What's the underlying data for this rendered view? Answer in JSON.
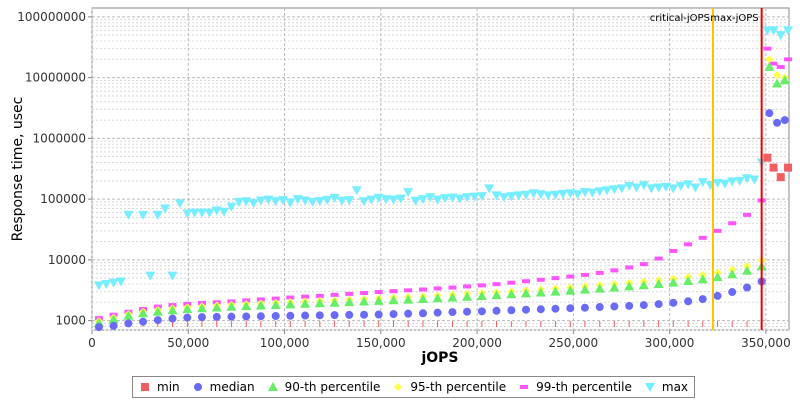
{
  "chart_data": {
    "type": "scatter",
    "xlabel": "jOPS",
    "ylabel": "Response time, usec",
    "xlim": [
      0,
      362000
    ],
    "ylim": [
      700,
      140000000
    ],
    "yscale": "log",
    "grid": true,
    "legend_position": "bottom",
    "x_ticks": [
      {
        "value": 0,
        "label": "0"
      },
      {
        "value": 50000,
        "label": "50,000"
      },
      {
        "value": 100000,
        "label": "100,000"
      },
      {
        "value": 150000,
        "label": "150,000"
      },
      {
        "value": 200000,
        "label": "200,000"
      },
      {
        "value": 250000,
        "label": "250,000"
      },
      {
        "value": 300000,
        "label": "300,000"
      },
      {
        "value": 350000,
        "label": "350,000"
      }
    ],
    "y_ticks": [
      {
        "value": 1000,
        "label": "1000"
      },
      {
        "value": 10000,
        "label": "10000"
      },
      {
        "value": 100000,
        "label": "100000"
      },
      {
        "value": 1000000,
        "label": "1000000"
      },
      {
        "value": 10000000,
        "label": "10000000"
      },
      {
        "value": 100000000,
        "label": "100000000"
      }
    ],
    "markers": [
      {
        "name": "critical-jOPS",
        "x": 322500,
        "color": "#ffc000"
      },
      {
        "name": "max-jOPS",
        "x": 347800,
        "color": "#ee0000"
      }
    ],
    "series": [
      {
        "name": "min",
        "color": "#f06060",
        "shape": "square",
        "x": [
          350800,
          354000,
          357700,
          361500
        ],
        "y": [
          480000,
          330000,
          230000,
          330000
        ]
      },
      {
        "name": "median",
        "color": "#6a6af5",
        "shape": "circle",
        "x": [
          3600,
          11200,
          18900,
          26500,
          34200,
          41800,
          49500,
          57100,
          64800,
          72400,
          80100,
          87700,
          95400,
          103000,
          110700,
          118300,
          126000,
          133600,
          141300,
          148900,
          156600,
          164200,
          171900,
          179500,
          187200,
          194800,
          202500,
          210100,
          217800,
          225400,
          233100,
          240700,
          248400,
          256000,
          263700,
          271300,
          279000,
          286600,
          294300,
          301900,
          309600,
          317200,
          324900,
          332500,
          340200,
          347800,
          351800,
          355800,
          359800
        ],
        "y": [
          780,
          820,
          900,
          960,
          1020,
          1080,
          1120,
          1140,
          1150,
          1160,
          1170,
          1180,
          1190,
          1200,
          1210,
          1220,
          1230,
          1240,
          1250,
          1260,
          1280,
          1300,
          1320,
          1350,
          1380,
          1400,
          1420,
          1450,
          1480,
          1510,
          1540,
          1570,
          1600,
          1630,
          1670,
          1710,
          1750,
          1800,
          1870,
          1960,
          2080,
          2260,
          2550,
          2950,
          3500,
          4400,
          2600000,
          1800000,
          2000000
        ]
      },
      {
        "name": "90-th percentile",
        "color": "#66ee66",
        "shape": "triangle",
        "x": [
          3600,
          11200,
          18900,
          26500,
          34200,
          41800,
          49500,
          57100,
          64800,
          72400,
          80100,
          87700,
          95400,
          103000,
          110700,
          118300,
          126000,
          133600,
          141300,
          148900,
          156600,
          164200,
          171900,
          179500,
          187200,
          194800,
          202500,
          210100,
          217800,
          225400,
          233100,
          240700,
          248400,
          256000,
          263700,
          271300,
          279000,
          286600,
          294300,
          301900,
          309600,
          317200,
          324900,
          332500,
          340200,
          347800,
          351800,
          355800,
          359800
        ],
        "y": [
          920,
          1050,
          1200,
          1320,
          1400,
          1480,
          1550,
          1600,
          1640,
          1690,
          1730,
          1770,
          1810,
          1850,
          1890,
          1930,
          1970,
          2010,
          2060,
          2110,
          2160,
          2210,
          2270,
          2330,
          2400,
          2470,
          2540,
          2620,
          2710,
          2800,
          2900,
          3000,
          3110,
          3230,
          3360,
          3500,
          3650,
          3820,
          4000,
          4220,
          4480,
          4800,
          5200,
          5800,
          6600,
          7800,
          15000000,
          8000000,
          9000000
        ]
      },
      {
        "name": "95-th percentile",
        "color": "#ffff44",
        "shape": "diamond",
        "x": [
          3600,
          11200,
          18900,
          26500,
          34200,
          41800,
          49500,
          57100,
          64800,
          72400,
          80100,
          87700,
          95400,
          103000,
          110700,
          118300,
          126000,
          133600,
          141300,
          148900,
          156600,
          164200,
          171900,
          179500,
          187200,
          194800,
          202500,
          210100,
          217800,
          225400,
          233100,
          240700,
          248400,
          256000,
          263700,
          271300,
          279000,
          286600,
          294300,
          301900,
          309600,
          317200,
          324900,
          332500,
          340200,
          347800,
          351800,
          355800,
          359800
        ],
        "y": [
          980,
          1120,
          1280,
          1400,
          1500,
          1590,
          1660,
          1720,
          1770,
          1820,
          1870,
          1910,
          1960,
          2000,
          2050,
          2100,
          2150,
          2200,
          2260,
          2320,
          2380,
          2440,
          2510,
          2580,
          2660,
          2740,
          2830,
          2920,
          3020,
          3130,
          3250,
          3370,
          3500,
          3650,
          3810,
          3980,
          4170,
          4380,
          4620,
          4900,
          5230,
          5630,
          6150,
          6900,
          7900,
          9800,
          20000000,
          11000000,
          10000000
        ]
      },
      {
        "name": "99-th percentile",
        "color": "#ff55ff",
        "shape": "dash",
        "x": [
          3600,
          11200,
          18900,
          26500,
          34200,
          41800,
          49500,
          57100,
          64800,
          72400,
          80100,
          87700,
          95400,
          103000,
          110700,
          118300,
          126000,
          133600,
          141300,
          148900,
          156600,
          164200,
          171900,
          179500,
          187200,
          194800,
          202500,
          210100,
          217800,
          225400,
          233100,
          240700,
          248400,
          256000,
          263700,
          271300,
          279000,
          286600,
          294300,
          301900,
          309600,
          317200,
          324900,
          332500,
          340200,
          347800,
          350800,
          354000,
          357700,
          361500
        ],
        "y": [
          1100,
          1250,
          1400,
          1550,
          1700,
          1800,
          1880,
          1950,
          2000,
          2070,
          2150,
          2230,
          2300,
          2400,
          2480,
          2550,
          2650,
          2750,
          2850,
          2950,
          3050,
          3150,
          3250,
          3380,
          3500,
          3650,
          3800,
          3980,
          4200,
          4450,
          4700,
          5000,
          5300,
          5650,
          6100,
          6700,
          7500,
          8500,
          10500,
          14000,
          18000,
          23000,
          30000,
          40000,
          55000,
          95000,
          30000000,
          17000000,
          15000000,
          20000000
        ]
      },
      {
        "name": "max",
        "color": "#77eeff",
        "shape": "triangle-down",
        "x": [
          3600,
          7400,
          11200,
          15000,
          18900,
          26500,
          30300,
          34200,
          38000,
          41800,
          45700,
          49500,
          53300,
          57100,
          61000,
          64800,
          68600,
          72400,
          76300,
          80100,
          83900,
          87700,
          91600,
          95400,
          99200,
          103000,
          106900,
          110700,
          114500,
          118300,
          122200,
          126000,
          129800,
          133600,
          137500,
          141300,
          145100,
          148900,
          152800,
          156600,
          160400,
          164200,
          168100,
          171900,
          175700,
          179500,
          183400,
          187200,
          191000,
          194800,
          198700,
          202500,
          206300,
          210100,
          214000,
          217800,
          221600,
          225400,
          229300,
          233100,
          236900,
          240700,
          244600,
          248400,
          252200,
          256000,
          259900,
          263700,
          267500,
          271300,
          275200,
          279000,
          282800,
          286600,
          290500,
          294300,
          298100,
          301900,
          305800,
          309600,
          313400,
          317200,
          321100,
          324900,
          328700,
          332500,
          336400,
          340200,
          344000,
          347800,
          350800,
          354000,
          357700,
          361500
        ],
        "y": [
          3800,
          4000,
          4200,
          4400,
          55000,
          55000,
          5500,
          55000,
          70000,
          5500,
          85000,
          58000,
          60000,
          60000,
          60000,
          65000,
          62000,
          75000,
          90000,
          92000,
          86000,
          95000,
          98000,
          92000,
          96000,
          88000,
          100000,
          95000,
          90000,
          93000,
          97000,
          105000,
          94000,
          96000,
          140000,
          92000,
          98000,
          105000,
          100000,
          98000,
          102000,
          130000,
          94000,
          100000,
          108000,
          98000,
          104000,
          106000,
          102000,
          108000,
          110000,
          112000,
          150000,
          115000,
          108000,
          112000,
          115000,
          118000,
          125000,
          120000,
          115000,
          118000,
          122000,
          125000,
          120000,
          130000,
          128000,
          135000,
          140000,
          145000,
          150000,
          165000,
          155000,
          170000,
          150000,
          155000,
          160000,
          150000,
          165000,
          175000,
          155000,
          190000,
          170000,
          185000,
          180000,
          195000,
          200000,
          220000,
          210000,
          400000,
          60000000,
          60000000,
          50000000,
          60000000
        ]
      }
    ],
    "min_series_note_markers": "red ticks along bottom",
    "legend": [
      "min",
      "median",
      "90-th percentile",
      "95-th percentile",
      "99-th percentile",
      "max"
    ]
  }
}
